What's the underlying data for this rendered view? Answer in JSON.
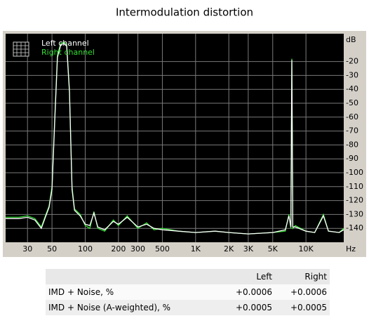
{
  "chart_data": {
    "type": "line",
    "title": "Intermodulation distortion",
    "x_unit": "Hz",
    "y_unit": "dB",
    "xscale": "log",
    "grid": true,
    "legend": "top-left",
    "xlim": [
      19,
      22000
    ],
    "ylim": [
      -150,
      0
    ],
    "xticks": [
      30,
      50,
      100,
      200,
      300,
      500,
      {
        "value": 1000,
        "label": "1K"
      },
      {
        "value": 2000,
        "label": "2K"
      },
      {
        "value": 3000,
        "label": "3K"
      },
      {
        "value": 5000,
        "label": "5K"
      },
      {
        "value": 10000,
        "label": "10K"
      }
    ],
    "yticks": [
      -20,
      -30,
      -40,
      -50,
      -60,
      -70,
      -80,
      -90,
      -100,
      -110,
      -120,
      -130,
      -140
    ],
    "x": [
      19,
      25,
      30,
      35,
      40,
      44,
      47,
      50,
      53,
      56,
      60,
      64,
      68,
      72,
      76,
      80,
      90,
      100,
      110,
      120,
      130,
      150,
      180,
      200,
      240,
      300,
      360,
      420,
      500,
      700,
      1000,
      1500,
      2000,
      3000,
      5000,
      6500,
      7000,
      7300,
      7450,
      7600,
      8000,
      10000,
      12000,
      14400,
      16000,
      20000,
      22000
    ],
    "series": [
      {
        "name": "Left channel",
        "color": "#ffffff",
        "values": [
          -133,
          -133,
          -132,
          -134,
          -140,
          -131,
          -125,
          -112,
          -62,
          -17,
          -8,
          -7,
          -9,
          -42,
          -112,
          -127,
          -131,
          -137,
          -138,
          -129,
          -139,
          -141,
          -135,
          -137,
          -132,
          -139,
          -137,
          -140,
          -141,
          -142,
          -143,
          -142,
          -143,
          -144,
          -143,
          -141,
          -131,
          -139,
          -19,
          -139,
          -139,
          -142,
          -143,
          -131,
          -142,
          -143,
          -141
        ]
      },
      {
        "name": "Right channel",
        "color": "#33dd33",
        "values": [
          -132,
          -132,
          -131,
          -133,
          -139,
          -130,
          -124,
          -110,
          -60,
          -15,
          -7,
          -6,
          -8,
          -40,
          -110,
          -126,
          -130,
          -138,
          -140,
          -128,
          -140,
          -142,
          -134,
          -138,
          -131,
          -140,
          -136,
          -141,
          -140,
          -142,
          -143,
          -142,
          -143,
          -144,
          -143,
          -142,
          -130,
          -140,
          -18,
          -140,
          -138,
          -142,
          -143,
          -130,
          -142,
          -143,
          -140
        ]
      }
    ]
  },
  "table": {
    "headers": [
      "Left",
      "Right"
    ],
    "rows": [
      {
        "label": "IMD + Noise, %",
        "values": [
          "+0.0006",
          "+0.0006"
        ]
      },
      {
        "label": "IMD + Noise (A-weighted), %",
        "values": [
          "+0.0005",
          "+0.0005"
        ]
      }
    ]
  }
}
